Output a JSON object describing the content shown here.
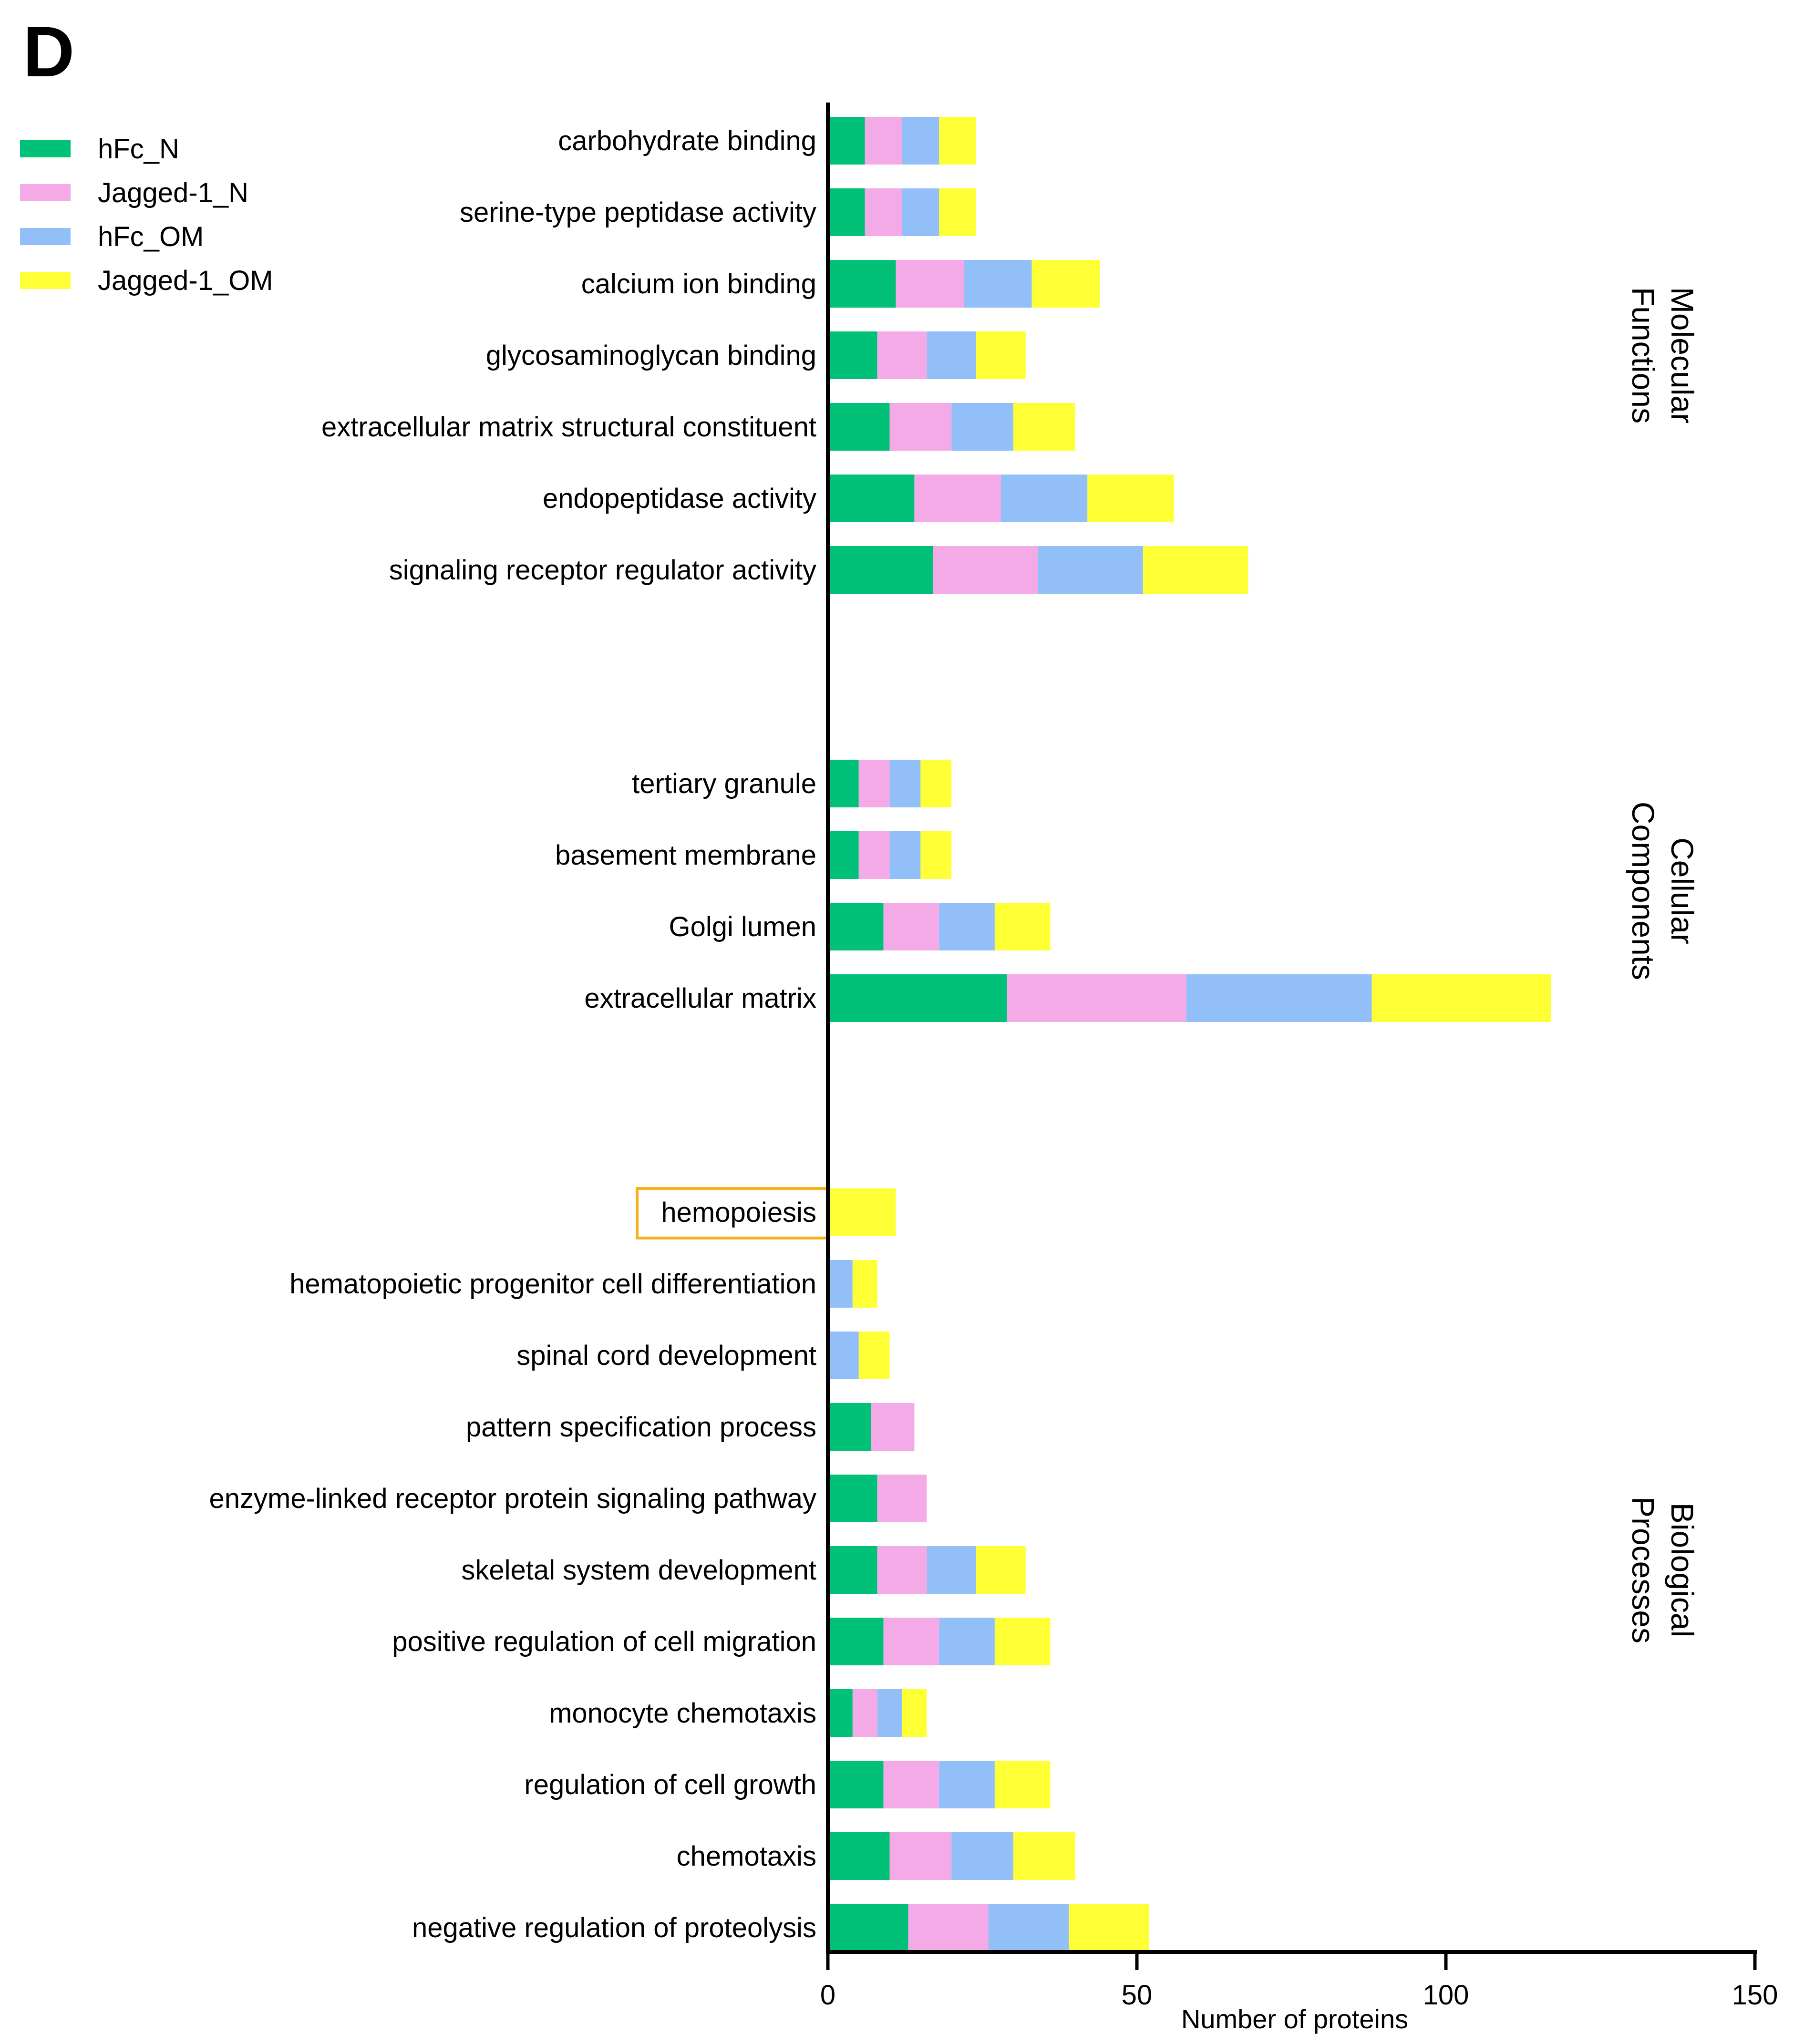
{
  "panel_label": "D",
  "chart_data": {
    "type": "bar",
    "orientation": "horizontal",
    "stacked": true,
    "xlabel": "Number of proteins",
    "xlim": [
      0,
      150
    ],
    "xticks": [
      0,
      50,
      100,
      150
    ],
    "grid": false,
    "legend_position": "top-left",
    "series": [
      {
        "name": "hFc_N",
        "color": "#00c177"
      },
      {
        "name": "Jagged-1_N",
        "color": "#f4aae6"
      },
      {
        "name": "hFc_OM",
        "color": "#92bff8"
      },
      {
        "name": "Jagged-1_OM",
        "color": "#ffff35"
      }
    ],
    "groups": [
      {
        "name": "Molecular Functions",
        "label_lines": [
          "Molecular",
          "Functions"
        ],
        "categories": [
          {
            "label": "carbohydrate binding",
            "values": [
              6,
              6,
              6,
              6
            ]
          },
          {
            "label": "serine-type peptidase activity",
            "values": [
              6,
              6,
              6,
              6
            ]
          },
          {
            "label": "calcium ion binding",
            "values": [
              11,
              11,
              11,
              11
            ]
          },
          {
            "label": "glycosaminoglycan binding",
            "values": [
              8,
              8,
              8,
              8
            ]
          },
          {
            "label": "extracellular matrix structural constituent",
            "values": [
              10,
              10,
              10,
              10
            ]
          },
          {
            "label": "endopeptidase activity",
            "values": [
              14,
              14,
              14,
              14
            ]
          },
          {
            "label": "signaling receptor regulator activity",
            "values": [
              17,
              17,
              17,
              17
            ]
          }
        ]
      },
      {
        "name": "Cellular Components",
        "label_lines": [
          "Cellular",
          "Components"
        ],
        "categories": [
          {
            "label": "tertiary granule",
            "values": [
              5,
              5,
              5,
              5
            ]
          },
          {
            "label": "basement membrane",
            "values": [
              5,
              5,
              5,
              5
            ]
          },
          {
            "label": "Golgi lumen",
            "values": [
              9,
              9,
              9,
              9
            ]
          },
          {
            "label": "extracellular matrix",
            "values": [
              29,
              29,
              30,
              29
            ]
          }
        ]
      },
      {
        "name": "Biological Processes",
        "label_lines": [
          "Biological",
          "Processes"
        ],
        "categories": [
          {
            "label": "hemopoiesis",
            "values": [
              0,
              0,
              0,
              11
            ],
            "highlight": true
          },
          {
            "label": "hematopoietic progenitor cell differentiation",
            "values": [
              0,
              0,
              4,
              4
            ]
          },
          {
            "label": "spinal cord development",
            "values": [
              0,
              0,
              5,
              5
            ]
          },
          {
            "label": "pattern specification process",
            "values": [
              7,
              7,
              0,
              0
            ]
          },
          {
            "label": "enzyme-linked receptor protein signaling pathway",
            "values": [
              8,
              8,
              0,
              0
            ]
          },
          {
            "label": "skeletal system development",
            "values": [
              8,
              8,
              8,
              8
            ]
          },
          {
            "label": "positive regulation of cell migration",
            "values": [
              9,
              9,
              9,
              9
            ]
          },
          {
            "label": "monocyte chemotaxis",
            "values": [
              4,
              4,
              4,
              4
            ]
          },
          {
            "label": "regulation of cell growth",
            "values": [
              9,
              9,
              9,
              9
            ]
          },
          {
            "label": "chemotaxis",
            "values": [
              10,
              10,
              10,
              10
            ]
          },
          {
            "label": "negative regulation of proteolysis",
            "values": [
              13,
              13,
              13,
              13
            ]
          }
        ]
      }
    ],
    "highlight_color": "#f5b21f"
  }
}
